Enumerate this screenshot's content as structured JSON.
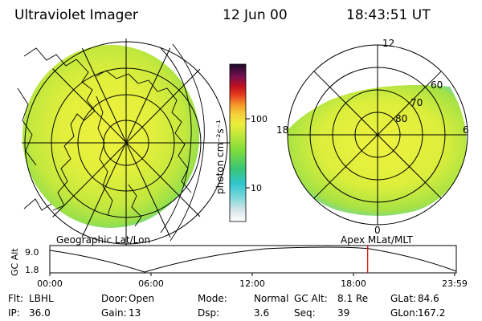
{
  "header": {
    "instrument": "Ultraviolet Imager",
    "date": "12 Jun 00",
    "time": "18:43:51 UT"
  },
  "colorbar": {
    "unit_label": "photon cm⁻²s⁻¹",
    "ticks": [
      "100",
      "10"
    ]
  },
  "left_map": {
    "label": "Geographic Lat/Lon"
  },
  "right_map": {
    "label": "Apex MLat/MLT",
    "mlt_labels": [
      "12",
      "18",
      "6",
      "0"
    ],
    "lat_labels": [
      "60",
      "70",
      "80"
    ]
  },
  "altitude_plot": {
    "ylabel": "GC Alt",
    "ytick_top": "9.0",
    "ytick_bottom": "1.8",
    "xticks": [
      "00:00",
      "06:00",
      "12:00",
      "18:00",
      "23:59"
    ],
    "current_time_fraction": 0.782
  },
  "status": {
    "row1": [
      {
        "key": "Flt:",
        "value": "LBHL"
      },
      {
        "key": "Door:",
        "value": "Open"
      },
      {
        "key": "Mode:",
        "value": "Normal"
      },
      {
        "key": "GC Alt:",
        "value": "8.1 Re"
      },
      {
        "key": "GLat:",
        "value": "84.6"
      }
    ],
    "row2": [
      {
        "key": "IP:",
        "value": "36.0"
      },
      {
        "key": "Gain:",
        "value": "13"
      },
      {
        "key": "Dsp:",
        "value": "3.6"
      },
      {
        "key": "Seq:",
        "value": "39"
      },
      {
        "key": "GLon:",
        "value": "167.2"
      }
    ]
  },
  "colors": {
    "image_green": "#a8e63c",
    "image_yellow": "#e8ef3a",
    "image_cyan": "#5fd2c8",
    "marker_red": "#e00000"
  }
}
